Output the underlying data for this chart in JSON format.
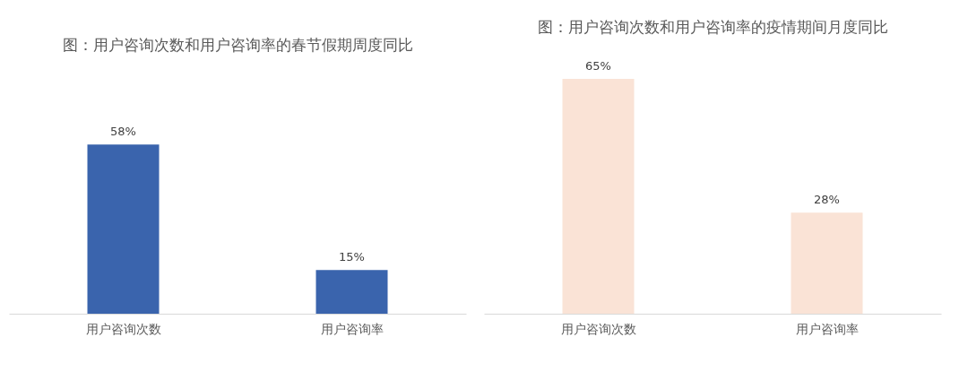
{
  "chart_data": [
    {
      "type": "bar",
      "title": "图：用户咨询次数和用户咨询率的春节假期周度同比",
      "categories": [
        "用户咨询次数",
        "用户咨询率"
      ],
      "values": [
        58,
        15
      ],
      "value_labels": [
        "58%",
        "15%"
      ],
      "color": "#3a64ad"
    },
    {
      "type": "bar",
      "title": "图：用户咨询次数和用户咨询率的疫情期间月度同比",
      "categories": [
        "用户咨询次数",
        "用户咨询率"
      ],
      "values": [
        65,
        28
      ],
      "value_labels": [
        "65%",
        "28%"
      ],
      "color": "#fae3d6"
    }
  ]
}
